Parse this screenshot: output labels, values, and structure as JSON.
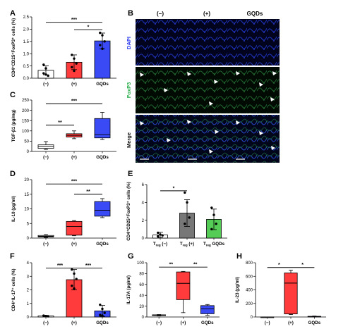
{
  "panel_letters": [
    "A",
    "B",
    "C",
    "D",
    "E",
    "F",
    "G",
    "H"
  ],
  "micrograph": {
    "columns": [
      "(−)",
      "(+)",
      "GQDs"
    ],
    "rows": [
      {
        "label": "DAPI",
        "color": "#2233ee"
      },
      {
        "label": "FoxP3",
        "color": "#22aa44"
      },
      {
        "label": "Merge",
        "color": "#111111"
      }
    ]
  },
  "chart_data": [
    {
      "panel": "A",
      "type": "bar",
      "categories": [
        "(−)",
        "(+)",
        "GQDs"
      ],
      "ylabel": "CD4⁺CD25⁺FoxP3⁺ cells (%)",
      "ylim": [
        0,
        2.5
      ],
      "yticks": [
        "0.0",
        "0.5",
        "1.0",
        "1.5",
        "2.0",
        "2.5"
      ],
      "ytick_values": [
        0,
        0.5,
        1.0,
        1.5,
        2.0,
        2.5
      ],
      "values": [
        0.32,
        0.65,
        1.52
      ],
      "errors": [
        0.18,
        0.3,
        0.32
      ],
      "colors": [
        "#ffffff",
        "#ff3b3b",
        "#3a4bf5"
      ],
      "points": [
        [
          0.55,
          0.4,
          0.1,
          0.2,
          0.15
        ],
        [
          0.95,
          0.8,
          0.6,
          0.45,
          0.3
        ],
        [
          1.85,
          1.75,
          1.5,
          1.35,
          1.2
        ]
      ],
      "significance": [
        {
          "from": 0,
          "to": 2,
          "label": "***",
          "y": 2.28
        },
        {
          "from": 1,
          "to": 2,
          "label": "*",
          "y": 1.98
        }
      ]
    },
    {
      "panel": "C",
      "type": "box",
      "categories": [
        "(−)",
        "(+)",
        "GQDs"
      ],
      "ylabel": "TGF-β1 (pg/mg)",
      "ylim": [
        0,
        250
      ],
      "yticks": [
        "0",
        "50",
        "100",
        "150",
        "200",
        "250"
      ],
      "ytick_values": [
        0,
        50,
        100,
        150,
        200,
        250
      ],
      "boxes": [
        {
          "min": 10,
          "q1": 15,
          "median": 25,
          "q3": 32,
          "max": 48
        },
        {
          "min": 62,
          "q1": 70,
          "median": 78,
          "q3": 86,
          "max": 100
        },
        {
          "min": 58,
          "q1": 66,
          "median": 82,
          "q3": 160,
          "max": 190
        }
      ],
      "colors": [
        "#ffffff",
        "#ff3b3b",
        "#3a4bf5"
      ],
      "significance": [
        {
          "from": 0,
          "to": 2,
          "label": "***",
          "y": 232
        },
        {
          "from": 0,
          "to": 1,
          "label": "**",
          "y": 128
        }
      ]
    },
    {
      "panel": "D",
      "type": "box",
      "categories": [
        "(−)",
        "(+)",
        "GQDs"
      ],
      "ylabel": "IL-10 (pg/ml)",
      "ylim": [
        0,
        20
      ],
      "yticks": [
        "0",
        "5",
        "10",
        "15",
        "20"
      ],
      "ytick_values": [
        0,
        5,
        10,
        15,
        20
      ],
      "boxes": [
        {
          "min": 0.2,
          "q1": 0.4,
          "median": 0.6,
          "q3": 0.9,
          "max": 1.2
        },
        {
          "min": 0.8,
          "q1": 1.0,
          "median": 4.0,
          "q3": 5.7,
          "max": 6.0
        },
        {
          "min": 7.0,
          "q1": 7.5,
          "median": 9.5,
          "q3": 12.5,
          "max": 13.5
        }
      ],
      "colors": [
        "#ffffff",
        "#ff3b3b",
        "#3a4bf5"
      ],
      "significance": [
        {
          "from": 0,
          "to": 2,
          "label": "***",
          "y": 18.5
        },
        {
          "from": 1,
          "to": 2,
          "label": "**",
          "y": 15
        }
      ]
    },
    {
      "panel": "E",
      "type": "bar",
      "categories": [
        "T_reg (−)",
        "T_reg (+)",
        "T_reg GQDs"
      ],
      "ylabel": "CD4⁺CD25⁺FoxP3⁺ cells (%)",
      "ylim": [
        0,
        6
      ],
      "yticks": [
        "0",
        "2",
        "4",
        "6"
      ],
      "ytick_values": [
        0,
        2,
        4,
        6
      ],
      "values": [
        0.35,
        2.8,
        2.1
      ],
      "errors": [
        0.3,
        1.5,
        1.15
      ],
      "colors": [
        "#ffffff",
        "#777777",
        "#55cc55"
      ],
      "points": [
        [
          0.6,
          0.4,
          0.3,
          0.2
        ],
        [
          5.1,
          4.0,
          2.3,
          1.6
        ],
        [
          3.4,
          2.6,
          1.6,
          1.0
        ]
      ],
      "significance": [
        {
          "from": 0,
          "to": 1,
          "label": "*",
          "y": 5.3
        }
      ]
    },
    {
      "panel": "F",
      "type": "bar",
      "categories": [
        "(−)",
        "(+)",
        "GQDs"
      ],
      "ylabel": "CD4⁺IL-17⁺ cells (%)",
      "ylim": [
        0,
        4
      ],
      "yticks": [
        "0",
        "1",
        "2",
        "3",
        "4"
      ],
      "ytick_values": [
        0,
        1,
        2,
        3,
        4
      ],
      "values": [
        0.08,
        2.75,
        0.45
      ],
      "errors": [
        0.04,
        0.75,
        0.4
      ],
      "colors": [
        "#ffffff",
        "#ff3b3b",
        "#3a4bf5"
      ],
      "points": [
        [
          0.1,
          0.07,
          0.05,
          0.09,
          0.06
        ],
        [
          3.5,
          3.2,
          2.8,
          2.3,
          2.1
        ],
        [
          0.9,
          0.6,
          0.3,
          0.15,
          0.1
        ]
      ],
      "significance": [
        {
          "from": 0,
          "to": 1,
          "label": "***",
          "y": 3.6
        },
        {
          "from": 1,
          "to": 2,
          "label": "***",
          "y": 3.6
        }
      ]
    },
    {
      "panel": "G",
      "type": "box",
      "categories": [
        "(−)",
        "(+)",
        "GQDs"
      ],
      "ylabel": "IL-17A (pg/ml)",
      "ylim": [
        0,
        100
      ],
      "yticks": [
        "0",
        "20",
        "40",
        "60",
        "80",
        "100"
      ],
      "ytick_values": [
        0,
        20,
        40,
        60,
        80,
        100
      ],
      "boxes": [
        {
          "min": 2,
          "q1": 3,
          "median": 3.5,
          "q3": 4,
          "max": 4.5
        },
        {
          "min": 8,
          "q1": 32,
          "median": 62,
          "q3": 83,
          "max": 84
        },
        {
          "min": 3,
          "q1": 6,
          "median": 15,
          "q3": 21,
          "max": 23
        }
      ],
      "colors": [
        "#ffffff",
        "#ff3b3b",
        "#3a4bf5"
      ],
      "significance": [
        {
          "from": 0,
          "to": 1,
          "label": "**",
          "y": 92
        },
        {
          "from": 1,
          "to": 2,
          "label": "**",
          "y": 92
        }
      ]
    },
    {
      "panel": "H",
      "type": "box",
      "categories": [
        "(−)",
        "(+)",
        "GQDs"
      ],
      "ylabel": "IL-23 (pg/ml)",
      "ylim": [
        0,
        800
      ],
      "yticks": [
        "0",
        "200",
        "400",
        "600",
        "800"
      ],
      "ytick_values": [
        0,
        200,
        400,
        600,
        800
      ],
      "boxes": [
        {
          "min": 0,
          "q1": 0,
          "median": 0,
          "q3": 0,
          "max": 0
        },
        {
          "min": 35,
          "q1": 45,
          "median": 500,
          "q3": 650,
          "max": 690
        },
        {
          "min": 0,
          "q1": 3,
          "median": 6,
          "q3": 10,
          "max": 14
        }
      ],
      "colors": [
        "#ffffff",
        "#ff3b3b",
        "#3a4bf5"
      ],
      "significance": [
        {
          "from": 0,
          "to": 1,
          "label": "*",
          "y": 730
        },
        {
          "from": 1,
          "to": 2,
          "label": "*",
          "y": 730
        }
      ]
    }
  ]
}
